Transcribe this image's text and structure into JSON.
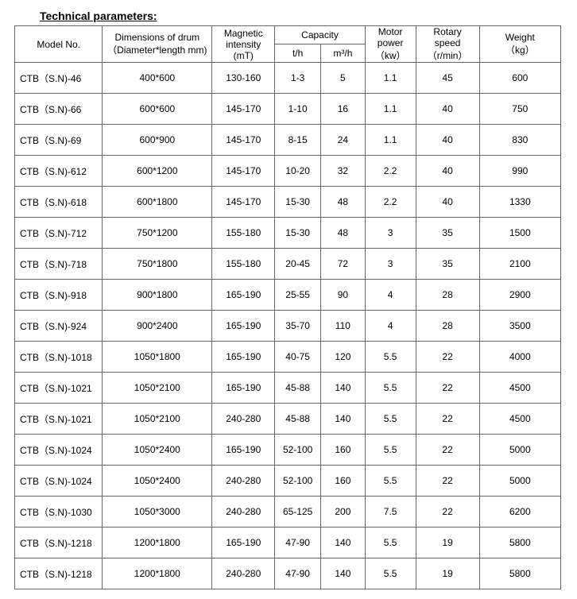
{
  "title": "Technical parameters:",
  "headers": {
    "model": "Model No.",
    "dim_line1": "Dimensions of drum",
    "dim_line2": "（Diameter*length mm)",
    "mag_line1": "Magnetic",
    "mag_line2": "intensity",
    "mag_line3": "(mT)",
    "capacity": "Capacity",
    "th": "t/h",
    "m3h": "m³/h",
    "power_line1": "Motor",
    "power_line2": "power",
    "power_line3": "（kw）",
    "speed_line1": "Rotary",
    "speed_line2": "speed",
    "speed_line3": "（r/min）",
    "weight_line1": "Weight",
    "weight_line2": "（kg）"
  },
  "rows": [
    {
      "model": "CTB（S.N)-46",
      "dim": "400*600",
      "mag": "130-160",
      "th": "1-3",
      "m3h": "5",
      "power": "1.1",
      "speed": "45",
      "weight": "600"
    },
    {
      "model": "CTB（S.N)-66",
      "dim": "600*600",
      "mag": "145-170",
      "th": "1-10",
      "m3h": "16",
      "power": "1.1",
      "speed": "40",
      "weight": "750"
    },
    {
      "model": "CTB（S.N)-69",
      "dim": "600*900",
      "mag": "145-170",
      "th": "8-15",
      "m3h": "24",
      "power": "1.1",
      "speed": "40",
      "weight": "830"
    },
    {
      "model": "CTB（S.N)-612",
      "dim": "600*1200",
      "mag": "145-170",
      "th": "10-20",
      "m3h": "32",
      "power": "2.2",
      "speed": "40",
      "weight": "990"
    },
    {
      "model": "CTB（S.N)-618",
      "dim": "600*1800",
      "mag": "145-170",
      "th": "15-30",
      "m3h": "48",
      "power": "2.2",
      "speed": "40",
      "weight": "1330"
    },
    {
      "model": "CTB（S.N)-712",
      "dim": "750*1200",
      "mag": "155-180",
      "th": "15-30",
      "m3h": "48",
      "power": "3",
      "speed": "35",
      "weight": "1500"
    },
    {
      "model": "CTB（S.N)-718",
      "dim": "750*1800",
      "mag": "155-180",
      "th": "20-45",
      "m3h": "72",
      "power": "3",
      "speed": "35",
      "weight": "2100"
    },
    {
      "model": "CTB（S.N)-918",
      "dim": "900*1800",
      "mag": "165-190",
      "th": "25-55",
      "m3h": "90",
      "power": "4",
      "speed": "28",
      "weight": "2900"
    },
    {
      "model": "CTB（S.N)-924",
      "dim": "900*2400",
      "mag": "165-190",
      "th": "35-70",
      "m3h": "110",
      "power": "4",
      "speed": "28",
      "weight": "3500"
    },
    {
      "model": "CTB（S.N)-1018",
      "dim": "1050*1800",
      "mag": "165-190",
      "th": "40-75",
      "m3h": "120",
      "power": "5.5",
      "speed": "22",
      "weight": "4000"
    },
    {
      "model": "CTB（S.N)-1021",
      "dim": "1050*2100",
      "mag": "165-190",
      "th": "45-88",
      "m3h": "140",
      "power": "5.5",
      "speed": "22",
      "weight": "4500"
    },
    {
      "model": "CTB（S.N)-1021",
      "dim": "1050*2100",
      "mag": "240-280",
      "th": "45-88",
      "m3h": "140",
      "power": "5.5",
      "speed": "22",
      "weight": "4500"
    },
    {
      "model": "CTB（S.N)-1024",
      "dim": "1050*2400",
      "mag": "165-190",
      "th": "52-100",
      "m3h": "160",
      "power": "5.5",
      "speed": "22",
      "weight": "5000"
    },
    {
      "model": "CTB（S.N)-1024",
      "dim": "1050*2400",
      "mag": "240-280",
      "th": "52-100",
      "m3h": "160",
      "power": "5.5",
      "speed": "22",
      "weight": "5000"
    },
    {
      "model": "CTB（S.N)-1030",
      "dim": "1050*3000",
      "mag": "240-280",
      "th": "65-125",
      "m3h": "200",
      "power": "7.5",
      "speed": "22",
      "weight": "6200"
    },
    {
      "model": "CTB（S.N)-1218",
      "dim": "1200*1800",
      "mag": "165-190",
      "th": "47-90",
      "m3h": "140",
      "power": "5.5",
      "speed": "19",
      "weight": "5800"
    },
    {
      "model": "CTB（S.N)-1218",
      "dim": "1200*1800",
      "mag": "240-280",
      "th": "47-90",
      "m3h": "140",
      "power": "5.5",
      "speed": "19",
      "weight": "5800"
    }
  ]
}
